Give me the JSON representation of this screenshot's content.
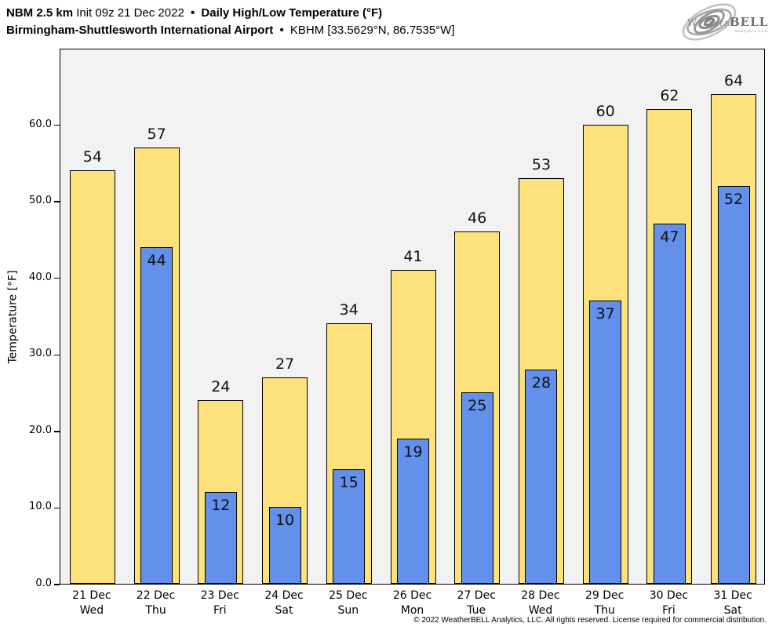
{
  "header": {
    "line1": {
      "model": "NBM 2.5 km",
      "init": "Init 09z 21 Dec 2022",
      "sep": "•",
      "product": "Daily High/Low Temperature (°F)"
    },
    "line2": {
      "station_name": "Birmingham-Shuttlesworth International Airport",
      "sep": "•",
      "station_id": "KBHM [33.5629°N, 86.7535°W]"
    }
  },
  "logo": {
    "weather": "Weather",
    "bell": "BELL",
    "sub": "Analytics LLC"
  },
  "chart_data": {
    "type": "bar",
    "title": "Daily High/Low Temperature (°F)",
    "ylabel": "Temperature [°F]",
    "ylim": [
      0,
      70
    ],
    "grid": false,
    "legend": "none",
    "plot_background": "#F2F2F2",
    "yticks": [
      {
        "value": 0,
        "label": "0.0"
      },
      {
        "value": 10,
        "label": "10.0"
      },
      {
        "value": 20,
        "label": "20.0"
      },
      {
        "value": 30,
        "label": "30.0"
      },
      {
        "value": 40,
        "label": "40.0"
      },
      {
        "value": 50,
        "label": "50.0"
      },
      {
        "value": 60,
        "label": "60.0"
      }
    ],
    "categories": [
      {
        "date": "21 Dec",
        "day": "Wed"
      },
      {
        "date": "22 Dec",
        "day": "Thu"
      },
      {
        "date": "23 Dec",
        "day": "Fri"
      },
      {
        "date": "24 Dec",
        "day": "Sat"
      },
      {
        "date": "25 Dec",
        "day": "Sun"
      },
      {
        "date": "26 Dec",
        "day": "Mon"
      },
      {
        "date": "27 Dec",
        "day": "Tue"
      },
      {
        "date": "28 Dec",
        "day": "Wed"
      },
      {
        "date": "29 Dec",
        "day": "Thu"
      },
      {
        "date": "30 Dec",
        "day": "Fri"
      },
      {
        "date": "31 Dec",
        "day": "Sat"
      }
    ],
    "series": [
      {
        "name": "High",
        "color": "#FDE17D",
        "values": [
          54,
          57,
          24,
          27,
          34,
          41,
          46,
          53,
          60,
          62,
          64
        ]
      },
      {
        "name": "Low",
        "color": "#6290EA",
        "values": [
          null,
          44,
          12,
          10,
          15,
          19,
          25,
          28,
          37,
          47,
          52
        ]
      }
    ]
  },
  "footer": {
    "copyright": "© 2022 WeatherBELL Analytics, LLC. All rights reserved. License required for commercial distribution."
  }
}
